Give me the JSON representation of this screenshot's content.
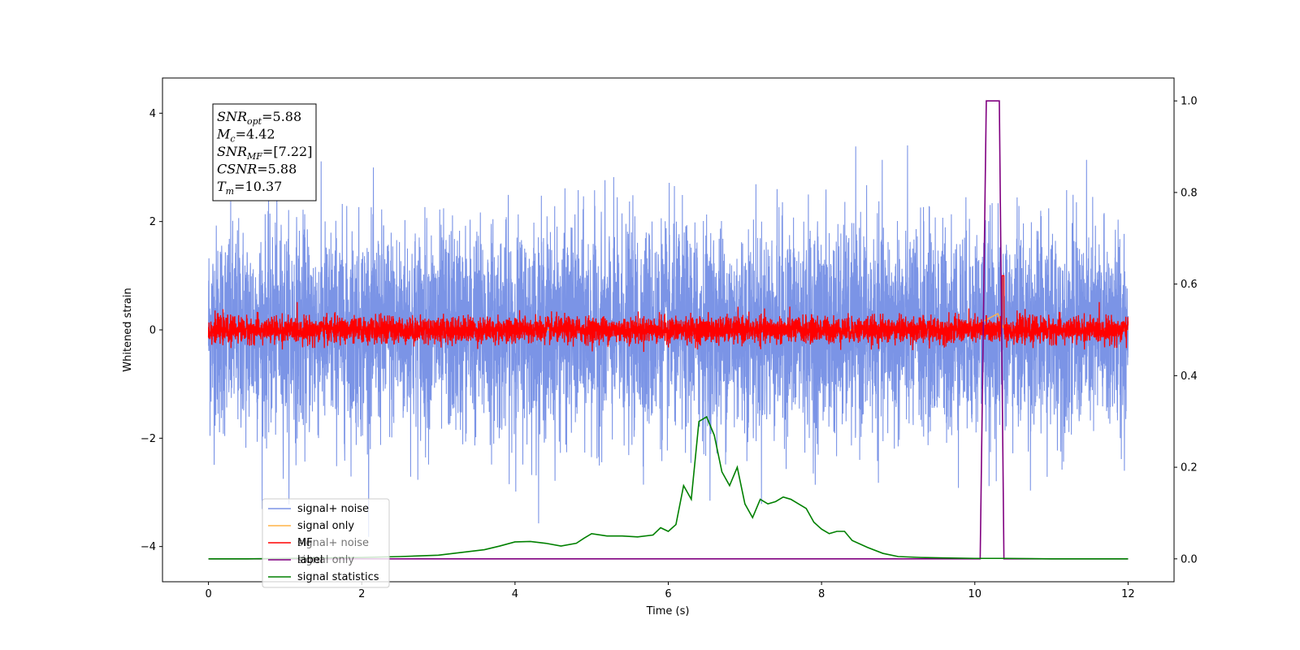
{
  "chart_data": {
    "type": "line",
    "xlabel": "Time (s)",
    "ylabel": "Whitened strain",
    "xlim": [
      -0.6,
      12.6
    ],
    "ylim_left": [
      -4.65,
      4.65
    ],
    "ylim_right": [
      -0.05,
      1.05
    ],
    "x_ticks": [
      0,
      2,
      4,
      6,
      8,
      10,
      12
    ],
    "y_ticks_left": [
      4,
      2,
      0,
      -2,
      -4
    ],
    "y_ticks_right": [
      1.0,
      0.8,
      0.6,
      0.4,
      0.2,
      0.0
    ],
    "grid": false,
    "legend_position": "lower-left",
    "legend": [
      {
        "label": "signal+ noise",
        "color": "#7b94e6"
      },
      {
        "label": "signal only",
        "color": "#ffb347"
      },
      {
        "label": "MF",
        "color": "#ff0000"
      },
      {
        "label": "label",
        "color": "#800080"
      },
      {
        "label": "signal statistics",
        "color": "#008000"
      }
    ],
    "ghost_legend": [
      "signal+ noise",
      "signal only"
    ],
    "annotation": [
      {
        "base": "SNR",
        "sub": "opt",
        "value": "=5.88"
      },
      {
        "base": "M",
        "sub": "c",
        "value": "=4.42"
      },
      {
        "base": "SNR",
        "sub": "MF",
        "value": "=[7.22]"
      },
      {
        "base": "CSNR",
        "sub": "",
        "value": "=5.88"
      },
      {
        "base": "T",
        "sub": "m",
        "value": "=10.37"
      }
    ],
    "series": [
      {
        "name": "signal+ noise",
        "axis": "left",
        "color": "#7b94e6",
        "x_range": [
          0,
          12
        ],
        "noise_std": 0.95,
        "peak_max": 4.2,
        "peak_min": -4.2
      },
      {
        "name": "signal only",
        "axis": "left",
        "color": "#ffb347",
        "x": [
          0,
          9.9,
          10.1,
          10.3,
          10.37,
          10.4,
          12
        ],
        "y": [
          0,
          0,
          0.15,
          0.3,
          0.05,
          0,
          0
        ]
      },
      {
        "name": "MF",
        "axis": "left",
        "color": "#ff0000",
        "x_range": [
          0,
          12
        ],
        "noise_std": 0.12,
        "peak_x": 10.37,
        "peak_y": 1.0
      },
      {
        "name": "label",
        "axis": "right",
        "color": "#800080",
        "x": [
          0,
          10.07,
          10.15,
          10.32,
          10.38,
          12
        ],
        "y": [
          0,
          0,
          1,
          1,
          0,
          0
        ]
      },
      {
        "name": "signal statistics",
        "axis": "right",
        "color": "#008000",
        "x": [
          0,
          0.5,
          1,
          1.5,
          2,
          2.5,
          3,
          3.2,
          3.4,
          3.6,
          3.8,
          4.0,
          4.2,
          4.4,
          4.6,
          4.8,
          4.9,
          5.0,
          5.2,
          5.4,
          5.6,
          5.8,
          5.9,
          6.0,
          6.1,
          6.2,
          6.3,
          6.4,
          6.5,
          6.6,
          6.7,
          6.8,
          6.9,
          7.0,
          7.1,
          7.2,
          7.3,
          7.4,
          7.5,
          7.6,
          7.7,
          7.8,
          7.9,
          8.0,
          8.1,
          8.2,
          8.3,
          8.4,
          8.6,
          8.8,
          9.0,
          9.3,
          9.6,
          10.0,
          10.4,
          11,
          12
        ],
        "y": [
          0.0,
          0.0,
          0.001,
          0.002,
          0.003,
          0.005,
          0.008,
          0.012,
          0.016,
          0.02,
          0.028,
          0.037,
          0.038,
          0.034,
          0.028,
          0.034,
          0.045,
          0.055,
          0.05,
          0.05,
          0.048,
          0.052,
          0.068,
          0.06,
          0.075,
          0.16,
          0.13,
          0.3,
          0.31,
          0.27,
          0.19,
          0.16,
          0.2,
          0.12,
          0.09,
          0.13,
          0.12,
          0.125,
          0.135,
          0.13,
          0.12,
          0.11,
          0.08,
          0.065,
          0.055,
          0.06,
          0.06,
          0.04,
          0.025,
          0.012,
          0.005,
          0.003,
          0.002,
          0.001,
          0.001,
          0.0,
          0.0
        ]
      }
    ]
  }
}
